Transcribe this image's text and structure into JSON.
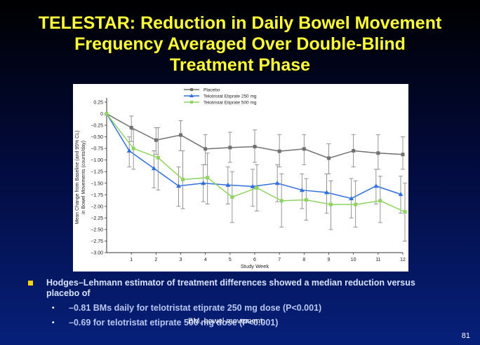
{
  "slide": {
    "title_lines": [
      "TELESTAR: Reduction in Daily Bowel Movement",
      "Frequency Averaged Over Double-Blind",
      "Treatment Phase"
    ],
    "bullet": "Hodges–Lehmann estimator of treatment differences showed a median reduction versus placebo of",
    "sub_bullets": [
      "–0.81 BMs daily for telotristat etiprate 250 mg dose (P<0.001)",
      "–0.69 for telotristat etiprate 500 mg dose (P<0.001)"
    ],
    "footnote": "BM, bowel movement.",
    "page_number": "81",
    "title_color": "#ffff3a",
    "bullet_color": "#ffd700"
  },
  "chart_data": {
    "type": "line",
    "xlabel": "Study Week",
    "ylabel_lines": [
      "Mean Change from Baseline (and 95% CL)",
      "in Bowel Movements (counts/day)"
    ],
    "x": [
      0,
      1,
      2,
      3,
      4,
      5,
      6,
      7,
      8,
      9,
      10,
      11,
      12
    ],
    "x_tick_labels": [
      "1",
      "2",
      "3",
      "4",
      "5",
      "6",
      "7",
      "8",
      "9",
      "10",
      "11",
      "12"
    ],
    "y_ticks": [
      0.25,
      0,
      -0.25,
      -0.5,
      -0.75,
      -1.0,
      -1.25,
      -1.5,
      -1.75,
      -2.0,
      -2.25,
      -2.5,
      -2.75,
      -3.0
    ],
    "y_tick_labels": [
      "0.25",
      "0",
      "−0.25",
      "−0.50",
      "−0.75",
      "−1.00",
      "−1.25",
      "−1.50",
      "−1.75",
      "−2.00",
      "−2.25",
      "−2.50",
      "−2.75",
      "−3.00"
    ],
    "ylim": [
      -3.0,
      0.25
    ],
    "xlim": [
      0,
      12
    ],
    "legend_position": "top-center",
    "series": [
      {
        "name": "Placebo",
        "color": "#707070",
        "marker": "square",
        "values": [
          0,
          -0.3,
          -0.57,
          -0.46,
          -0.76,
          -0.73,
          -0.71,
          -0.81,
          -0.76,
          -0.96,
          -0.8,
          -0.85,
          -0.88
        ],
        "ci_low": [
          0,
          -0.6,
          -0.88,
          -0.8,
          -1.1,
          -1.05,
          -1.05,
          -1.15,
          -1.1,
          -1.3,
          -1.15,
          -1.2,
          -1.2
        ],
        "ci_high": [
          0,
          -0.05,
          -0.3,
          -0.15,
          -0.45,
          -0.4,
          -0.35,
          -0.45,
          -0.45,
          -0.65,
          -0.45,
          -0.45,
          -0.5
        ]
      },
      {
        "name": "Telotristat Etiprate 250 mg",
        "color": "#2f6fe0",
        "marker": "triangle",
        "values": [
          0,
          -0.8,
          -1.18,
          -1.56,
          -1.5,
          -1.54,
          -1.57,
          -1.5,
          -1.65,
          -1.7,
          -1.83,
          -1.56,
          -1.74
        ],
        "ci_low": [
          0,
          -1.15,
          -1.6,
          -2.0,
          -1.9,
          -1.95,
          -2.0,
          -1.9,
          -2.05,
          -2.15,
          -2.25,
          -1.95,
          -2.15
        ],
        "ci_high": [
          0,
          -0.5,
          -0.8,
          -1.15,
          -1.1,
          -1.15,
          -1.2,
          -1.1,
          -1.3,
          -1.3,
          -1.4,
          -1.2,
          -1.35
        ]
      },
      {
        "name": "Telotristat Etiprate 500 mg",
        "color": "#8fd460",
        "marker": "square",
        "values": [
          0,
          -0.75,
          -0.95,
          -1.42,
          -1.38,
          -1.8,
          -1.6,
          -1.88,
          -1.86,
          -1.96,
          -1.96,
          -1.88,
          -2.12
        ],
        "ci_low": [
          0,
          -1.2,
          -1.65,
          -2.05,
          -1.95,
          -2.35,
          -2.1,
          -2.45,
          -2.3,
          -2.5,
          -2.45,
          -2.35,
          -2.75
        ],
        "ci_high": [
          0,
          -0.35,
          -0.3,
          -0.8,
          -0.85,
          -1.25,
          -1.1,
          -1.3,
          -1.4,
          -1.45,
          -1.45,
          -1.35,
          -1.5
        ]
      }
    ]
  }
}
